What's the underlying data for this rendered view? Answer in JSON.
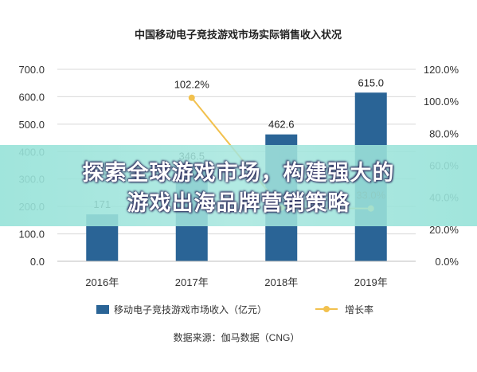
{
  "chart_data": {
    "type": "bar",
    "title": "中国移动电子竞技游戏市场实际销售收入状况",
    "categories": [
      "2016年",
      "2017年",
      "2018年",
      "2019年"
    ],
    "series": [
      {
        "name": "移动电子竞技游戏市场收入（亿元）",
        "type": "bar",
        "axis": "left",
        "values": [
          171.0,
          346.5,
          462.6,
          615.0
        ],
        "labels": [
          "171",
          "346.5",
          "462.6",
          "615.0"
        ],
        "color": "#2a6496"
      },
      {
        "name": "增长率",
        "type": "line",
        "axis": "right",
        "values": [
          null,
          102.2,
          33.5,
          33.0
        ],
        "labels": [
          "",
          "102.2%",
          "",
          "33.0%"
        ],
        "color": "#f2c14e"
      }
    ],
    "y_left": {
      "range": [
        0,
        700
      ],
      "ticks": [
        "0.0",
        "100.0",
        "200.0",
        "300.0",
        "400.0",
        "500.0",
        "600.0",
        "700.0"
      ]
    },
    "y_right": {
      "range": [
        0,
        120
      ],
      "ticks": [
        "0.0%",
        "20.0%",
        "40.0%",
        "60.0%",
        "80.0%",
        "100.0%",
        "120.0%"
      ]
    },
    "grid": true,
    "legend_position": "bottom",
    "source": "数据来源：伽马数据（CNG）"
  },
  "banner": {
    "line1": "探索全球游戏市场，构建强大的",
    "line2": "游戏出海品牌营销策略"
  }
}
